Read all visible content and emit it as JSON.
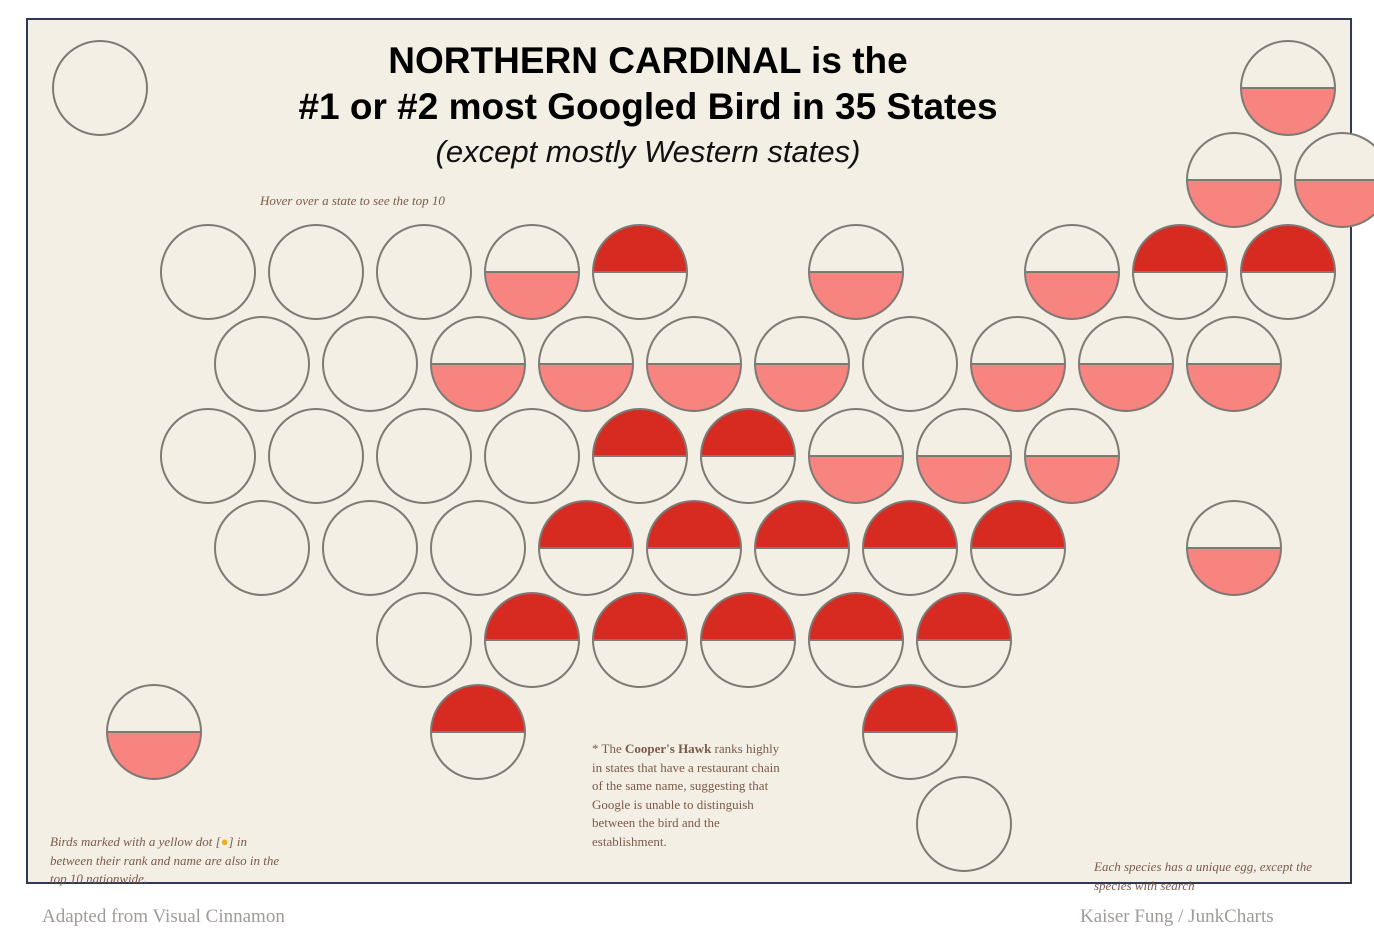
{
  "title_line1": "NORTHERN CARDINAL is the",
  "title_line2": "#1 or #2 most Googled Bird in 35 States",
  "subtitle": "(except mostly Western states)",
  "hover_hint": "Hover over a state to see the top 10",
  "footnote": {
    "lead": "* The ",
    "bold": "Cooper's Hawk",
    "rest": " ranks highly in states that have a restaurant chain of the same name, suggesting that Google is unable to distinguish between the bird and the establishment."
  },
  "yellow_note": {
    "before": "Birds marked with a yellow dot [",
    "dot": "●",
    "after": "] in between their rank and name are also in the top 10 nationwide."
  },
  "egg_note": "Each species has a unique egg, except the species with search",
  "credit_left": "Adapted from Visual Cinnamon",
  "credit_right": "Kaiser Fung / JunkCharts",
  "colors": {
    "rank1": "#d72b22",
    "rank2": "#f8847f",
    "empty": "#f3efe5",
    "outline": "#7d7a76",
    "background": "#f3efe5",
    "frame": "#2e3a55"
  },
  "chart_data": {
    "type": "tile-grid",
    "encoding": "Each circle is a state; a dark red top half means Northern Cardinal ranks #1, a light red bottom half means it ranks #2, an empty circle means neither.",
    "tiles": [
      {
        "row": 0,
        "col": 0,
        "rank": 0
      },
      {
        "row": 0,
        "col": 11,
        "rank": 2
      },
      {
        "row": 1,
        "col": 10,
        "rank": 2
      },
      {
        "row": 1,
        "col": 11,
        "rank": 2
      },
      {
        "row": 2,
        "col": 1,
        "rank": 0
      },
      {
        "row": 2,
        "col": 2,
        "rank": 0
      },
      {
        "row": 2,
        "col": 3,
        "rank": 0
      },
      {
        "row": 2,
        "col": 4,
        "rank": 2
      },
      {
        "row": 2,
        "col": 5,
        "rank": 1
      },
      {
        "row": 2,
        "col": 7,
        "rank": 2
      },
      {
        "row": 2,
        "col": 9,
        "rank": 2
      },
      {
        "row": 2,
        "col": 10,
        "rank": 1
      },
      {
        "row": 2,
        "col": 11,
        "rank": 1
      },
      {
        "row": 3,
        "col": 1,
        "rank": 0
      },
      {
        "row": 3,
        "col": 2,
        "rank": 0
      },
      {
        "row": 3,
        "col": 3,
        "rank": 2
      },
      {
        "row": 3,
        "col": 4,
        "rank": 2
      },
      {
        "row": 3,
        "col": 5,
        "rank": 2
      },
      {
        "row": 3,
        "col": 6,
        "rank": 2
      },
      {
        "row": 3,
        "col": 7,
        "rank": 0
      },
      {
        "row": 3,
        "col": 8,
        "rank": 2
      },
      {
        "row": 3,
        "col": 9,
        "rank": 2
      },
      {
        "row": 3,
        "col": 10,
        "rank": 2
      },
      {
        "row": 4,
        "col": 1,
        "rank": 0
      },
      {
        "row": 4,
        "col": 2,
        "rank": 0
      },
      {
        "row": 4,
        "col": 3,
        "rank": 0
      },
      {
        "row": 4,
        "col": 4,
        "rank": 0
      },
      {
        "row": 4,
        "col": 5,
        "rank": 1
      },
      {
        "row": 4,
        "col": 6,
        "rank": 1
      },
      {
        "row": 4,
        "col": 7,
        "rank": 2
      },
      {
        "row": 4,
        "col": 8,
        "rank": 2
      },
      {
        "row": 4,
        "col": 9,
        "rank": 2
      },
      {
        "row": 5,
        "col": 1,
        "rank": 0
      },
      {
        "row": 5,
        "col": 2,
        "rank": 0
      },
      {
        "row": 5,
        "col": 3,
        "rank": 0
      },
      {
        "row": 5,
        "col": 4,
        "rank": 1
      },
      {
        "row": 5,
        "col": 5,
        "rank": 1
      },
      {
        "row": 5,
        "col": 6,
        "rank": 1
      },
      {
        "row": 5,
        "col": 7,
        "rank": 1
      },
      {
        "row": 5,
        "col": 8,
        "rank": 1
      },
      {
        "row": 5,
        "col": 10,
        "rank": 2
      },
      {
        "row": 6,
        "col": 3,
        "rank": 0
      },
      {
        "row": 6,
        "col": 4,
        "rank": 1
      },
      {
        "row": 6,
        "col": 5,
        "rank": 1
      },
      {
        "row": 6,
        "col": 6,
        "rank": 1
      },
      {
        "row": 6,
        "col": 7,
        "rank": 1
      },
      {
        "row": 6,
        "col": 8,
        "rank": 1
      },
      {
        "row": 7,
        "col": 0,
        "rank": 2
      },
      {
        "row": 7,
        "col": 3,
        "rank": 1
      },
      {
        "row": 7,
        "col": 7,
        "rank": 1
      },
      {
        "row": 8,
        "col": 8,
        "rank": 0
      }
    ]
  }
}
